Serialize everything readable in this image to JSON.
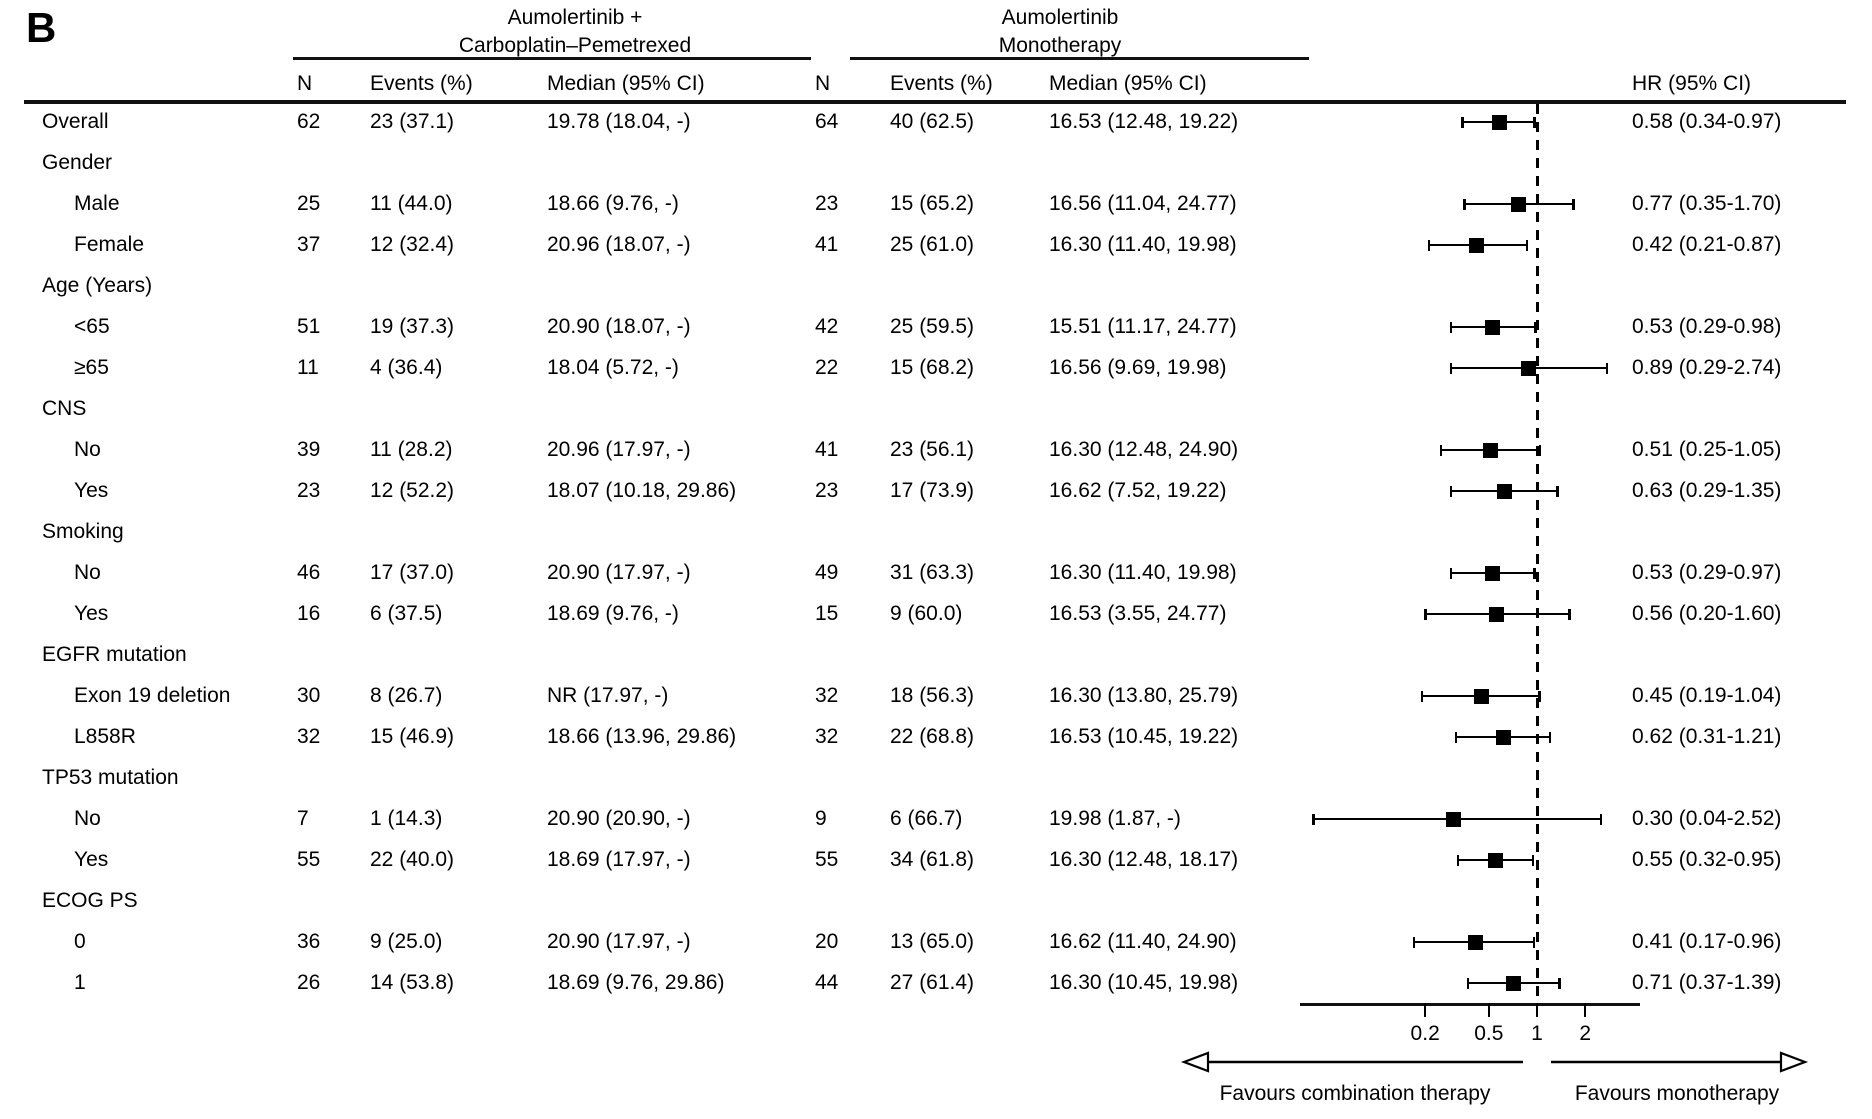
{
  "panel_label": "B",
  "arms": [
    {
      "line1": "Aumolertinib +",
      "line2": "Carboplatin–Pemetrexed"
    },
    {
      "line1": "Aumolertinib",
      "line2": "Monotherapy"
    }
  ],
  "columns": {
    "n": "N",
    "events": "Events (%)",
    "median": "Median (95% CI)",
    "hr": "HR (95% CI)"
  },
  "footer": {
    "left_arrow_label": "Favours combination therapy",
    "right_arrow_label": "Favours monotherapy"
  },
  "chart_data": {
    "type": "forest_plot",
    "x_axis": {
      "scale": "log",
      "ticks": [
        0.2,
        0.5,
        1,
        2
      ],
      "reference_line": 1
    },
    "legend_position": "none",
    "grid": false,
    "rows": [
      {
        "label": "Overall",
        "indent": 0,
        "combo": {
          "n": "62",
          "events": "23 (37.1)",
          "median": "19.78 (18.04, -)"
        },
        "mono": {
          "n": "64",
          "events": "40 (62.5)",
          "median": "16.53 (12.48, 19.22)"
        },
        "hr_text": "0.58 (0.34-0.97)",
        "hr": 0.58,
        "lo": 0.34,
        "hi": 0.97
      },
      {
        "label": "Gender",
        "indent": 0
      },
      {
        "label": "Male",
        "indent": 1,
        "combo": {
          "n": "25",
          "events": "11 (44.0)",
          "median": "18.66 (9.76, -)"
        },
        "mono": {
          "n": "23",
          "events": "15 (65.2)",
          "median": "16.56 (11.04, 24.77)"
        },
        "hr_text": "0.77 (0.35-1.70)",
        "hr": 0.77,
        "lo": 0.35,
        "hi": 1.7
      },
      {
        "label": "Female",
        "indent": 1,
        "combo": {
          "n": "37",
          "events": "12 (32.4)",
          "median": "20.96 (18.07, -)"
        },
        "mono": {
          "n": "41",
          "events": "25 (61.0)",
          "median": "16.30 (11.40, 19.98)"
        },
        "hr_text": "0.42 (0.21-0.87)",
        "hr": 0.42,
        "lo": 0.21,
        "hi": 0.87
      },
      {
        "label": "Age (Years)",
        "indent": 0
      },
      {
        "label": "<65",
        "indent": 1,
        "combo": {
          "n": "51",
          "events": "19 (37.3)",
          "median": "20.90 (18.07, -)"
        },
        "mono": {
          "n": "42",
          "events": "25 (59.5)",
          "median": "15.51 (11.17, 24.77)"
        },
        "hr_text": "0.53 (0.29-0.98)",
        "hr": 0.53,
        "lo": 0.29,
        "hi": 0.98
      },
      {
        "label": "≥65",
        "indent": 1,
        "combo": {
          "n": "11",
          "events": "4 (36.4)",
          "median": "18.04 (5.72, -)"
        },
        "mono": {
          "n": "22",
          "events": "15 (68.2)",
          "median": "16.56 (9.69, 19.98)"
        },
        "hr_text": "0.89 (0.29-2.74)",
        "hr": 0.89,
        "lo": 0.29,
        "hi": 2.74
      },
      {
        "label": "CNS",
        "indent": 0
      },
      {
        "label": "No",
        "indent": 1,
        "combo": {
          "n": "39",
          "events": "11 (28.2)",
          "median": "20.96 (17.97, -)"
        },
        "mono": {
          "n": "41",
          "events": "23 (56.1)",
          "median": "16.30 (12.48, 24.90)"
        },
        "hr_text": "0.51 (0.25-1.05)",
        "hr": 0.51,
        "lo": 0.25,
        "hi": 1.05
      },
      {
        "label": "Yes",
        "indent": 1,
        "combo": {
          "n": "23",
          "events": "12 (52.2)",
          "median": "18.07 (10.18, 29.86)"
        },
        "mono": {
          "n": "23",
          "events": "17 (73.9)",
          "median": "16.62 (7.52, 19.22)"
        },
        "hr_text": "0.63 (0.29-1.35)",
        "hr": 0.63,
        "lo": 0.29,
        "hi": 1.35
      },
      {
        "label": "Smoking",
        "indent": 0
      },
      {
        "label": "No",
        "indent": 1,
        "combo": {
          "n": "46",
          "events": "17 (37.0)",
          "median": "20.90 (17.97, -)"
        },
        "mono": {
          "n": "49",
          "events": "31 (63.3)",
          "median": "16.30 (11.40, 19.98)"
        },
        "hr_text": "0.53 (0.29-0.97)",
        "hr": 0.53,
        "lo": 0.29,
        "hi": 0.97
      },
      {
        "label": "Yes",
        "indent": 1,
        "combo": {
          "n": "16",
          "events": "6 (37.5)",
          "median": "18.69 (9.76, -)"
        },
        "mono": {
          "n": "15",
          "events": "9 (60.0)",
          "median": "16.53 (3.55, 24.77)"
        },
        "hr_text": "0.56 (0.20-1.60)",
        "hr": 0.56,
        "lo": 0.2,
        "hi": 1.6
      },
      {
        "label": "EGFR mutation",
        "indent": 0
      },
      {
        "label": "Exon 19 deletion",
        "indent": 1,
        "combo": {
          "n": "30",
          "events": "8 (26.7)",
          "median": "NR (17.97, -)"
        },
        "mono": {
          "n": "32",
          "events": "18 (56.3)",
          "median": "16.30 (13.80, 25.79)"
        },
        "hr_text": "0.45 (0.19-1.04)",
        "hr": 0.45,
        "lo": 0.19,
        "hi": 1.04
      },
      {
        "label": "L858R",
        "indent": 1,
        "combo": {
          "n": "32",
          "events": "15 (46.9)",
          "median": "18.66 (13.96, 29.86)"
        },
        "mono": {
          "n": "32",
          "events": "22 (68.8)",
          "median": "16.53 (10.45, 19.22)"
        },
        "hr_text": "0.62 (0.31-1.21)",
        "hr": 0.62,
        "lo": 0.31,
        "hi": 1.21
      },
      {
        "label": "TP53 mutation",
        "indent": 0
      },
      {
        "label": "No",
        "indent": 1,
        "combo": {
          "n": "7",
          "events": "1 (14.3)",
          "median": "20.90 (20.90, -)"
        },
        "mono": {
          "n": "9",
          "events": "6 (66.7)",
          "median": "19.98 (1.87, -)"
        },
        "hr_text": "0.30 (0.04-2.52)",
        "hr": 0.3,
        "lo": 0.04,
        "hi": 2.52
      },
      {
        "label": "Yes",
        "indent": 1,
        "combo": {
          "n": "55",
          "events": "22 (40.0)",
          "median": "18.69 (17.97, -)"
        },
        "mono": {
          "n": "55",
          "events": "34 (61.8)",
          "median": "16.30 (12.48, 18.17)"
        },
        "hr_text": "0.55 (0.32-0.95)",
        "hr": 0.55,
        "lo": 0.32,
        "hi": 0.95
      },
      {
        "label": "ECOG PS",
        "indent": 0
      },
      {
        "label": "0",
        "indent": 1,
        "combo": {
          "n": "36",
          "events": "9 (25.0)",
          "median": "20.90 (17.97, -)"
        },
        "mono": {
          "n": "20",
          "events": "13 (65.0)",
          "median": "16.62 (11.40, 24.90)"
        },
        "hr_text": "0.41 (0.17-0.96)",
        "hr": 0.41,
        "lo": 0.17,
        "hi": 0.96
      },
      {
        "label": "1",
        "indent": 1,
        "combo": {
          "n": "26",
          "events": "14 (53.8)",
          "median": "18.69 (9.76, 29.86)"
        },
        "mono": {
          "n": "44",
          "events": "27 (61.4)",
          "median": "16.30 (10.45, 19.98)"
        },
        "hr_text": "0.71 (0.37-1.39)",
        "hr": 0.71,
        "lo": 0.37,
        "hi": 1.39
      }
    ]
  }
}
